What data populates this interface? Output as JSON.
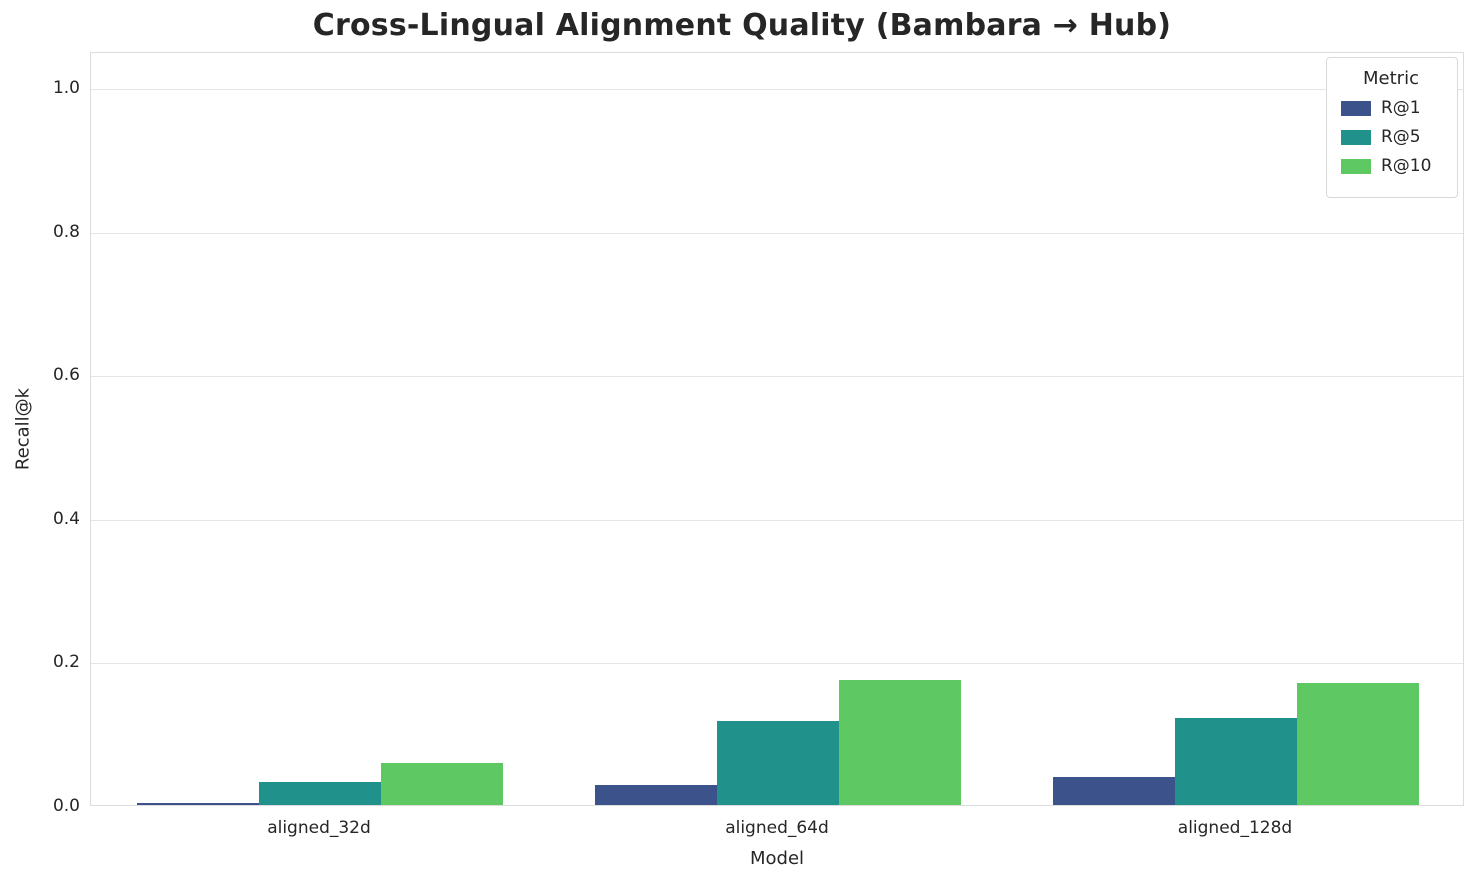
{
  "chart_data": {
    "type": "bar",
    "title": "Cross-Lingual Alignment Quality (Bambara → Hub)",
    "xlabel": "Model",
    "ylabel": "Recall@k",
    "categories": [
      "aligned_32d",
      "aligned_64d",
      "aligned_128d"
    ],
    "series": [
      {
        "name": "R@1",
        "color": "#3b528b",
        "values": [
          0.003,
          0.028,
          0.039
        ]
      },
      {
        "name": "R@5",
        "color": "#21918c",
        "values": [
          0.032,
          0.117,
          0.121
        ]
      },
      {
        "name": "R@10",
        "color": "#5ec962",
        "values": [
          0.058,
          0.174,
          0.17
        ]
      }
    ],
    "ylim": [
      0,
      1.05
    ],
    "yticks": [
      0.0,
      0.2,
      0.4,
      0.6,
      0.8,
      1.0
    ],
    "legend_title": "Metric",
    "legend_position": "upper right",
    "grid": true,
    "background_color": "#ffffff",
    "text_color": "#262626"
  }
}
